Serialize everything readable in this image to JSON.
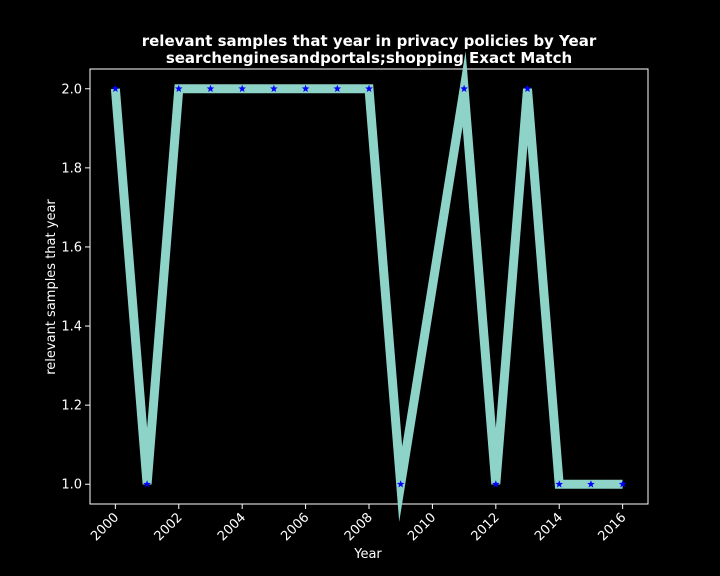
{
  "chart_data": {
    "type": "line",
    "title": "relevant samples that year in privacy policies by Year",
    "subtitle": "searchenginesandportals;shopping Exact Match",
    "xlabel": "Year",
    "ylabel": "relevant samples that year",
    "x": [
      2000,
      2001,
      2002,
      2003,
      2004,
      2005,
      2006,
      2007,
      2008,
      2009,
      2010,
      2011,
      2012,
      2013,
      2014,
      2015,
      2016
    ],
    "series": [
      {
        "values": [
          2,
          1,
          2,
          2,
          2,
          2,
          2,
          2,
          2,
          1,
          null,
          2,
          1,
          2,
          1,
          1,
          1
        ]
      }
    ],
    "xticks": [
      "2000",
      "2002",
      "2004",
      "2006",
      "2008",
      "2010",
      "2012",
      "2014",
      "2016"
    ],
    "yticks": [
      "1.0",
      "1.2",
      "1.4",
      "1.6",
      "1.8",
      "2.0"
    ],
    "xlim": [
      1999.2,
      2016.8
    ],
    "ylim": [
      0.95,
      2.05
    ],
    "grid": false,
    "background": "#000000",
    "line_color": "#8dd3c7",
    "marker_color": "#0000ff",
    "marker": "star"
  }
}
